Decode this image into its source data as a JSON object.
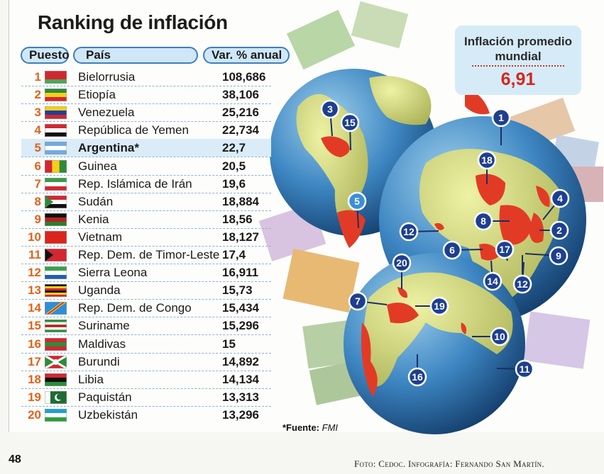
{
  "title": "Ranking de inflación",
  "headers": {
    "rank": "Puesto",
    "country": "País",
    "value": "Var. % anual"
  },
  "average_box": {
    "label": "Inflación promedio mundial",
    "value": "6,91"
  },
  "source": {
    "label": "*Fuente:",
    "org": "FMI"
  },
  "page_number": "48",
  "credit": "Foto: Cedoc. Infografía: Fernando San Martín.",
  "highlight_rank": "5",
  "colors": {
    "rank": "#e2621b",
    "header_border": "#3d7fc0",
    "header_fill": "#cfe7f7",
    "highlight": "#d9ecf8",
    "average_value": "#d7261e",
    "marker": "#1d3f8f"
  },
  "chart_data": {
    "type": "table",
    "title": "Ranking de inflación",
    "columns": [
      "Puesto",
      "País",
      "Var. % anual"
    ],
    "rows": [
      {
        "rank": "1",
        "country": "Bielorrusia",
        "value": "108,686",
        "flag": "belarus",
        "marker": "1"
      },
      {
        "rank": "2",
        "country": "Etiopía",
        "value": "38,106",
        "flag": "ethiopia",
        "marker": "2"
      },
      {
        "rank": "3",
        "country": "Venezuela",
        "value": "25,216",
        "flag": "venezuela",
        "marker": "3"
      },
      {
        "rank": "4",
        "country": "República de Yemen",
        "value": "22,734",
        "flag": "yemen",
        "marker": "4"
      },
      {
        "rank": "5",
        "country": "Argentina*",
        "value": "22,7",
        "flag": "argentina",
        "marker": "5"
      },
      {
        "rank": "6",
        "country": "Guinea",
        "value": "20,5",
        "flag": "guinea",
        "marker": "6"
      },
      {
        "rank": "7",
        "country": "Rep. Islámica de Irán",
        "value": "19,6",
        "flag": "iran",
        "marker": "7"
      },
      {
        "rank": "8",
        "country": "Sudán",
        "value": "18,884",
        "flag": "sudan",
        "marker": "8"
      },
      {
        "rank": "9",
        "country": "Kenia",
        "value": "18,56",
        "flag": "kenya",
        "marker": "9"
      },
      {
        "rank": "10",
        "country": "Vietnam",
        "value": "18,127",
        "flag": "vietnam",
        "marker": "10"
      },
      {
        "rank": "11",
        "country": "Rep. Dem. de Timor-Leste",
        "value": "17,4",
        "flag": "timor-leste",
        "marker": "11"
      },
      {
        "rank": "12",
        "country": "Sierra Leona",
        "value": "16,911",
        "flag": "sierra-leone",
        "marker": "12"
      },
      {
        "rank": "13",
        "country": "Uganda",
        "value": "15,73",
        "flag": "uganda",
        "marker": "13"
      },
      {
        "rank": "14",
        "country": "Rep. Dem. de Congo",
        "value": "15,434",
        "flag": "dr-congo",
        "marker": "14"
      },
      {
        "rank": "15",
        "country": "Suriname",
        "value": "15,296",
        "flag": "suriname",
        "marker": "15"
      },
      {
        "rank": "16",
        "country": "Maldivas",
        "value": "15",
        "flag": "maldives",
        "marker": "16"
      },
      {
        "rank": "17",
        "country": "Burundi",
        "value": "14,892",
        "flag": "burundi",
        "marker": "17"
      },
      {
        "rank": "18",
        "country": "Libia",
        "value": "14,134",
        "flag": "libya",
        "marker": "18"
      },
      {
        "rank": "19",
        "country": "Paquistán",
        "value": "13,313",
        "flag": "pakistan",
        "marker": "19"
      },
      {
        "rank": "20",
        "country": "Uzbekistán",
        "value": "13,296",
        "flag": "uzbekistan",
        "marker": "20"
      }
    ]
  }
}
